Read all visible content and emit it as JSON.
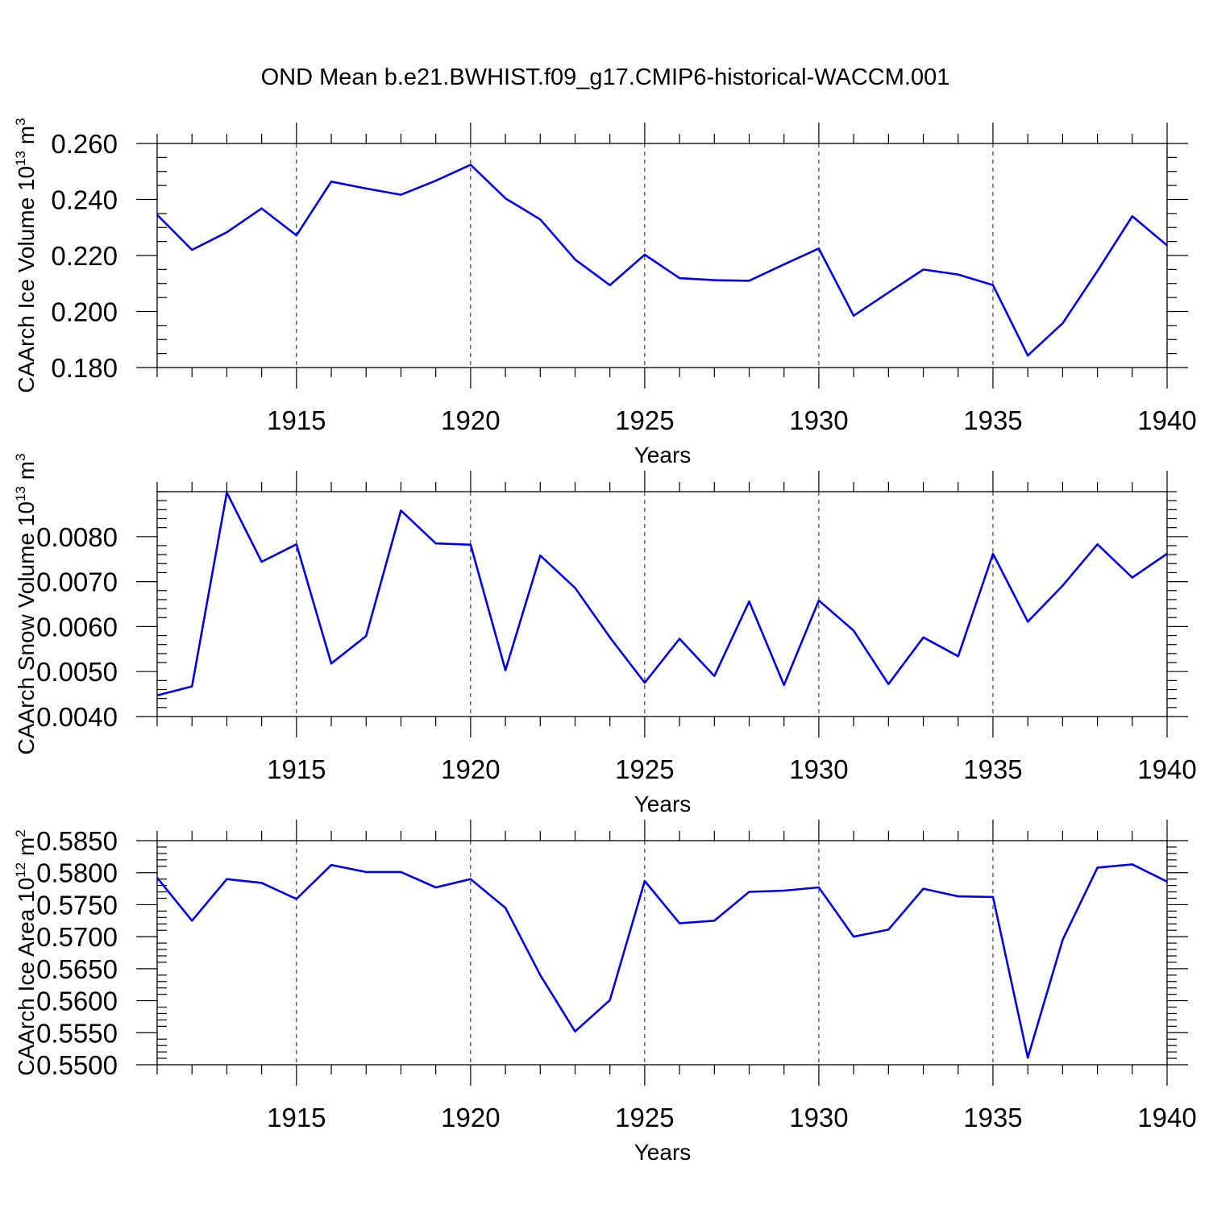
{
  "title": "OND Mean b.e21.BWHIST.f09_g17.CMIP6-historical-WACCM.001",
  "colors": {
    "line": "#0000ee",
    "axis": "#000000"
  },
  "chart_data": [
    {
      "type": "line",
      "xlabel": "Years",
      "ylabel": {
        "text": "CAArch Ice Volume 10",
        "sup": "13",
        "unit": " m",
        "unit_sup": "3"
      },
      "xlim": [
        1911,
        1940
      ],
      "ylim": [
        0.18,
        0.26
      ],
      "x_ticks": [
        1915,
        1920,
        1925,
        1930,
        1935,
        1940
      ],
      "x_tick_labels": [
        "1915",
        "1920",
        "1925",
        "1930",
        "1935",
        "1940"
      ],
      "y_ticks": [
        0.18,
        0.2,
        0.22,
        0.24,
        0.26
      ],
      "y_tick_labels": [
        "0.180",
        "0.200",
        "0.220",
        "0.240",
        "0.260"
      ],
      "y_minor_step": 0.005,
      "grid": "x-dashed",
      "x": [
        1911,
        1912,
        1913,
        1914,
        1915,
        1916,
        1917,
        1918,
        1919,
        1920,
        1921,
        1922,
        1923,
        1924,
        1925,
        1926,
        1927,
        1928,
        1929,
        1930,
        1931,
        1932,
        1933,
        1934,
        1935,
        1936,
        1937,
        1938,
        1939,
        1940
      ],
      "values": [
        0.2345,
        0.222,
        0.2283,
        0.2368,
        0.2272,
        0.2464,
        0.2439,
        0.2417,
        0.2467,
        0.2524,
        0.2404,
        0.2329,
        0.2186,
        0.2094,
        0.2203,
        0.2119,
        0.2112,
        0.211,
        0.2168,
        0.2225,
        0.1985,
        0.2068,
        0.215,
        0.2132,
        0.2094,
        0.1843,
        0.1958,
        0.2145,
        0.234,
        0.2236
      ]
    },
    {
      "type": "line",
      "xlabel": "Years",
      "ylabel": {
        "text": "CAArch Snow Volume 10",
        "sup": "13",
        "unit": " m",
        "unit_sup": "3"
      },
      "xlim": [
        1911,
        1940
      ],
      "ylim": [
        0.004,
        0.009
      ],
      "x_ticks": [
        1915,
        1920,
        1925,
        1930,
        1935,
        1940
      ],
      "x_tick_labels": [
        "1915",
        "1920",
        "1925",
        "1930",
        "1935",
        "1940"
      ],
      "y_ticks": [
        0.004,
        0.005,
        0.006,
        0.007,
        0.008
      ],
      "y_tick_labels": [
        "0.0040",
        "0.0050",
        "0.0060",
        "0.0070",
        "0.0080"
      ],
      "y_minor_step": 0.0002,
      "grid": "x-dashed",
      "x": [
        1911,
        1912,
        1913,
        1914,
        1915,
        1916,
        1917,
        1918,
        1919,
        1920,
        1921,
        1922,
        1923,
        1924,
        1925,
        1926,
        1927,
        1928,
        1929,
        1930,
        1931,
        1932,
        1933,
        1934,
        1935,
        1936,
        1937,
        1938,
        1939,
        1940
      ],
      "values": [
        0.00447,
        0.00467,
        0.00898,
        0.00744,
        0.00783,
        0.00518,
        0.00579,
        0.00858,
        0.00785,
        0.00782,
        0.00503,
        0.00758,
        0.00686,
        0.00576,
        0.00475,
        0.00573,
        0.0049,
        0.00656,
        0.0047,
        0.00658,
        0.00591,
        0.00472,
        0.00576,
        0.00534,
        0.00762,
        0.00611,
        0.00691,
        0.00783,
        0.00709,
        0.00762
      ]
    },
    {
      "type": "line",
      "xlabel": "Years",
      "ylabel": {
        "text": "CAArch Ice Area 10",
        "sup": "12",
        "unit": " m",
        "unit_sup": "2"
      },
      "xlim": [
        1911,
        1940
      ],
      "ylim": [
        0.55,
        0.585
      ],
      "x_ticks": [
        1915,
        1920,
        1925,
        1930,
        1935,
        1940
      ],
      "x_tick_labels": [
        "1915",
        "1920",
        "1925",
        "1930",
        "1935",
        "1940"
      ],
      "y_ticks": [
        0.55,
        0.555,
        0.56,
        0.565,
        0.57,
        0.575,
        0.58,
        0.585
      ],
      "y_tick_labels": [
        "0.5500",
        "0.5550",
        "0.5600",
        "0.5650",
        "0.5700",
        "0.5750",
        "0.5800",
        "0.5850"
      ],
      "y_minor_step": 0.001,
      "grid": "x-dashed",
      "x": [
        1911,
        1912,
        1913,
        1914,
        1915,
        1916,
        1917,
        1918,
        1919,
        1920,
        1921,
        1922,
        1923,
        1924,
        1925,
        1926,
        1927,
        1928,
        1929,
        1930,
        1931,
        1932,
        1933,
        1934,
        1935,
        1936,
        1937,
        1938,
        1939,
        1940
      ],
      "values": [
        0.5792,
        0.5725,
        0.579,
        0.5784,
        0.5759,
        0.5812,
        0.5801,
        0.5801,
        0.5777,
        0.579,
        0.5745,
        0.564,
        0.5552,
        0.5601,
        0.5787,
        0.5721,
        0.5725,
        0.577,
        0.5772,
        0.5777,
        0.57,
        0.5711,
        0.5775,
        0.5763,
        0.5762,
        0.5511,
        0.5695,
        0.5808,
        0.5813,
        0.5786
      ]
    }
  ]
}
